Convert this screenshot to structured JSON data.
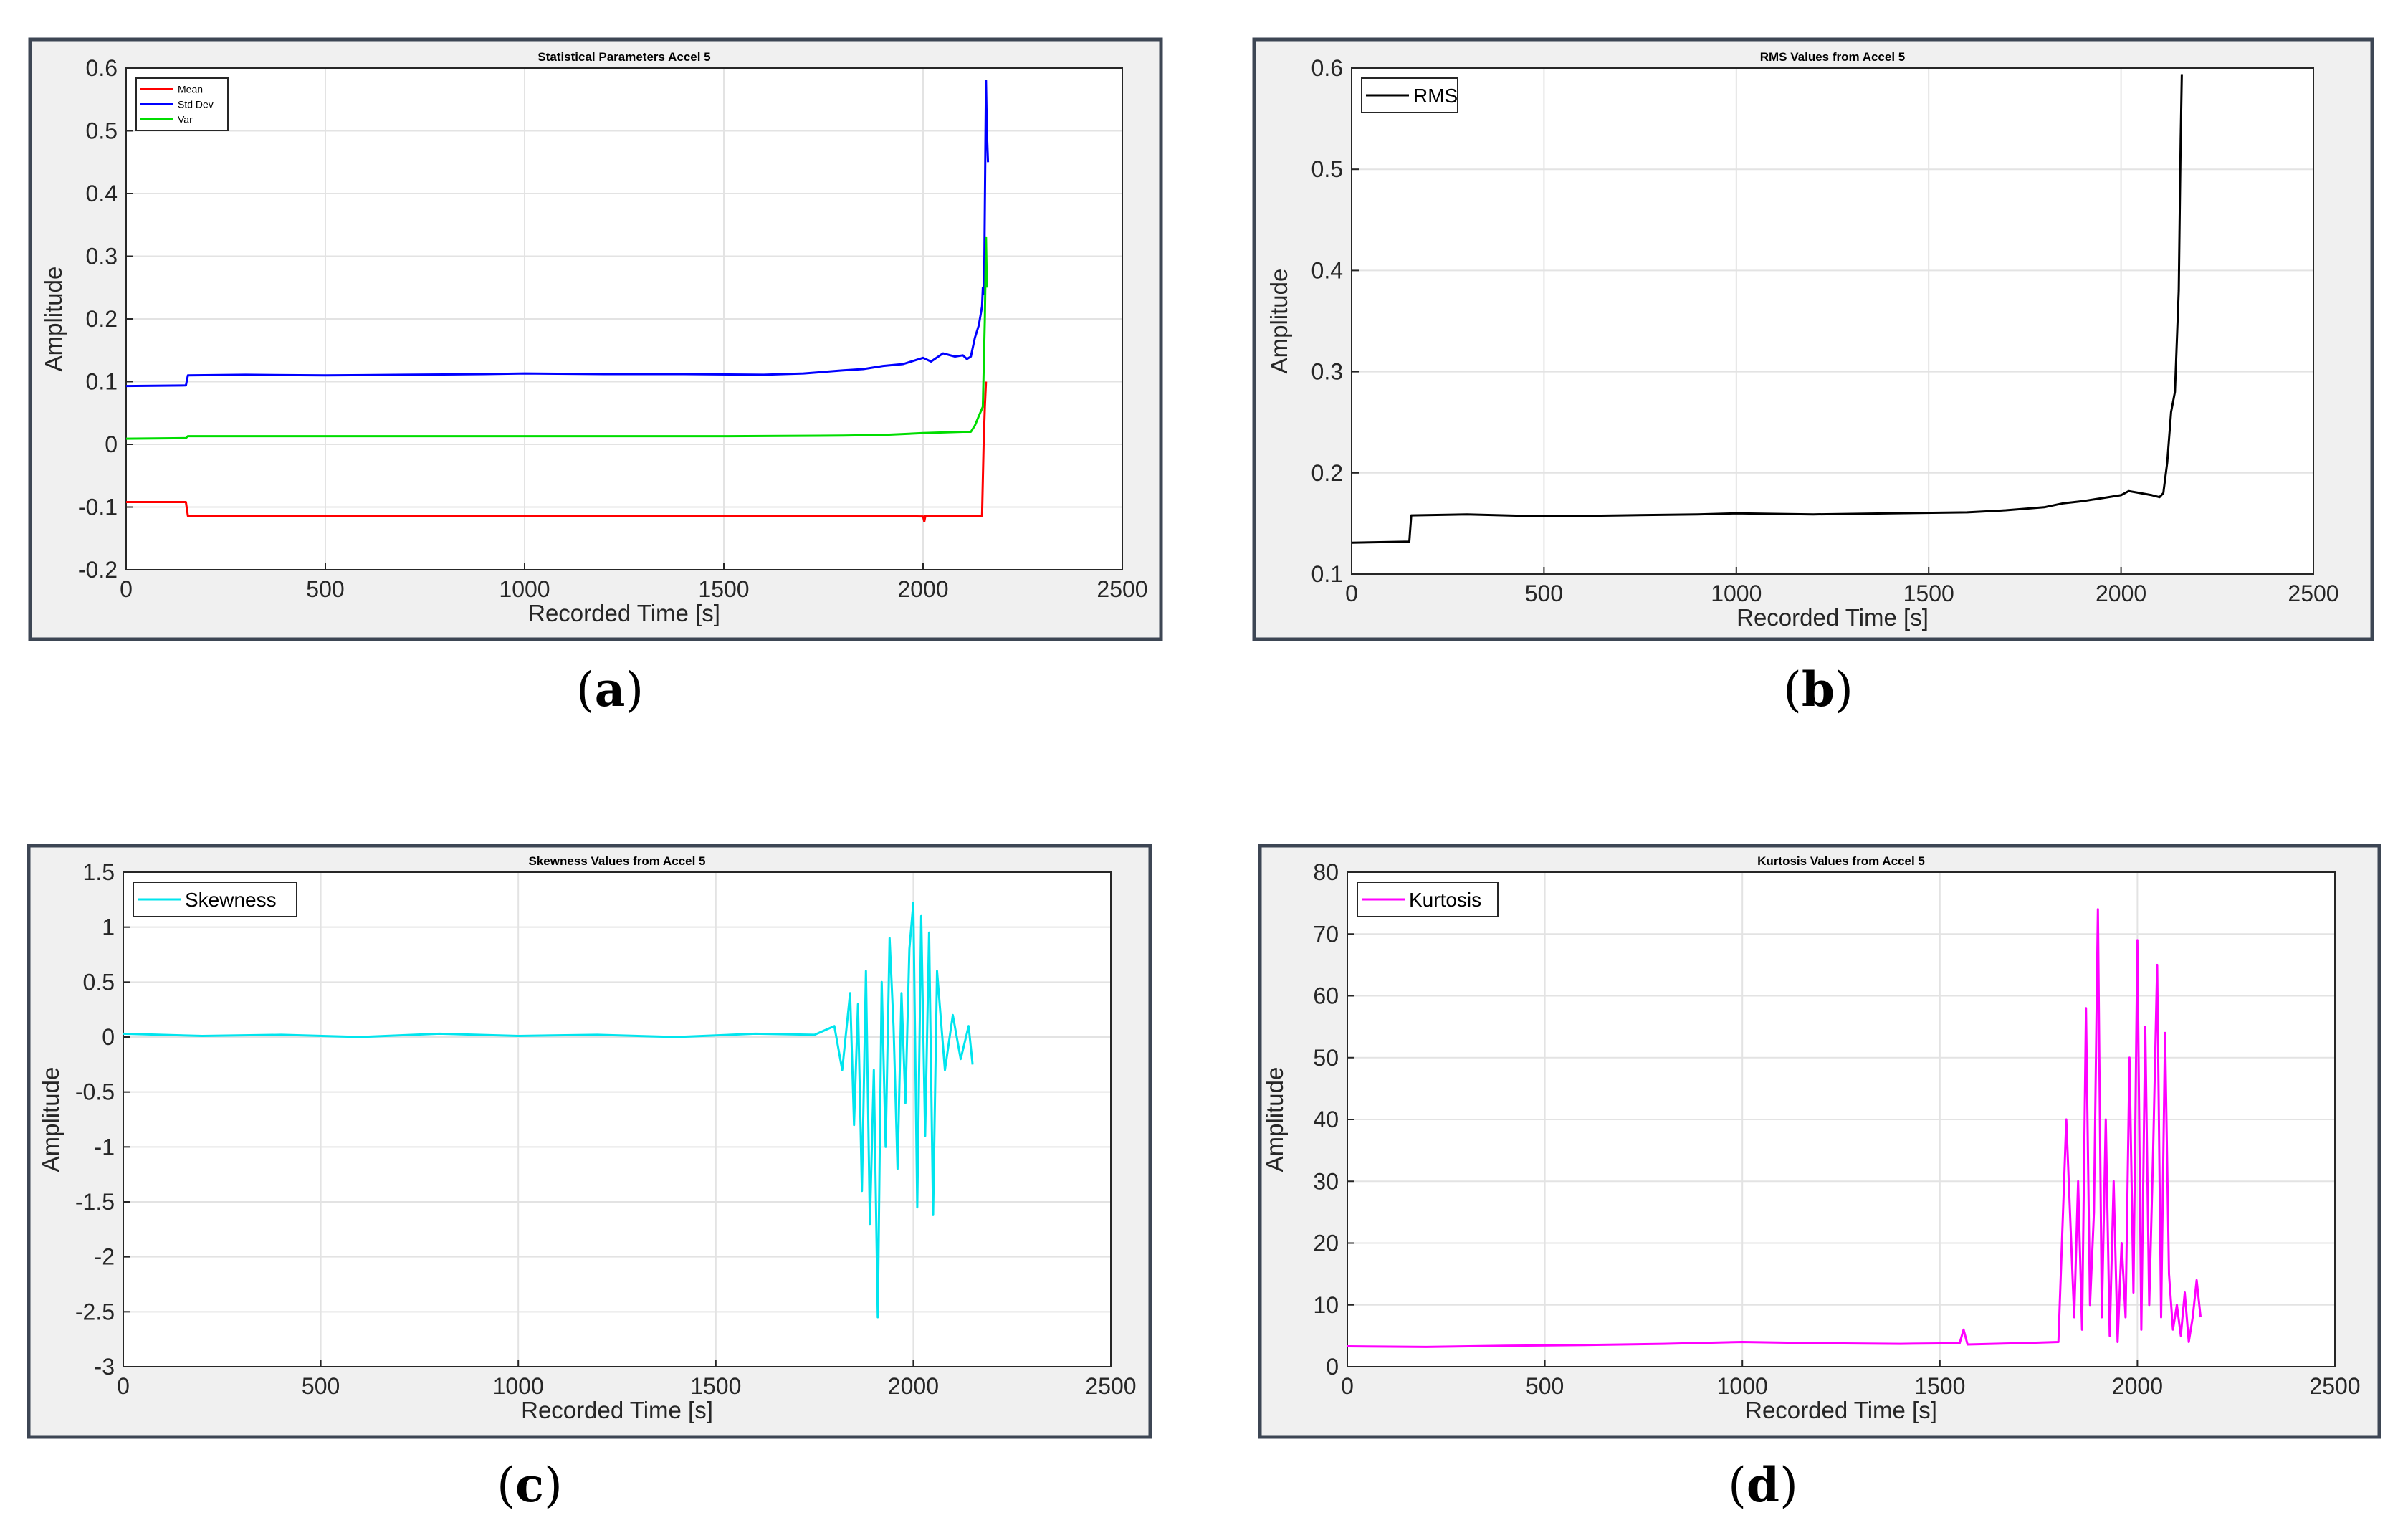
{
  "chart_data": [
    {
      "id": "a",
      "type": "line",
      "title": "Statistical Parameters Accel 5",
      "xlabel": "Recorded Time [s]",
      "ylabel": "Amplitude",
      "xlim": [
        0,
        2500
      ],
      "ylim": [
        -0.2,
        0.6
      ],
      "xticks": [
        "0",
        "500",
        "1000",
        "1500",
        "2000",
        "2500"
      ],
      "yticks": [
        "-0.2",
        "-0.1",
        "0",
        "0.1",
        "0.2",
        "0.3",
        "0.4",
        "0.5",
        "0.6"
      ],
      "grid": true,
      "legend_position": "top-left",
      "caption": {
        "open": "(",
        "letter": "a",
        "close": ")"
      },
      "series": [
        {
          "name": "Mean",
          "color": "#ff0000",
          "x": [
            0,
            150,
            155,
            500,
            1000,
            1500,
            1900,
            2000,
            2003,
            2006,
            2100,
            2130,
            2148,
            2152,
            2155,
            2158
          ],
          "y": [
            -0.092,
            -0.092,
            -0.114,
            -0.114,
            -0.114,
            -0.114,
            -0.114,
            -0.115,
            -0.123,
            -0.114,
            -0.114,
            -0.114,
            -0.114,
            0.0,
            0.06,
            0.1
          ]
        },
        {
          "name": "Std Dev",
          "color": "#0000ff",
          "x": [
            0,
            150,
            155,
            300,
            500,
            700,
            900,
            1000,
            1200,
            1400,
            1600,
            1700,
            1800,
            1850,
            1900,
            1950,
            2000,
            2020,
            2050,
            2080,
            2100,
            2110,
            2120,
            2130,
            2140,
            2148,
            2150,
            2153,
            2155,
            2158,
            2160,
            2163
          ],
          "y": [
            0.093,
            0.094,
            0.11,
            0.111,
            0.11,
            0.111,
            0.112,
            0.113,
            0.112,
            0.112,
            0.111,
            0.113,
            0.118,
            0.12,
            0.125,
            0.128,
            0.138,
            0.132,
            0.145,
            0.14,
            0.142,
            0.136,
            0.14,
            0.17,
            0.19,
            0.22,
            0.25,
            0.24,
            0.38,
            0.58,
            0.5,
            0.45
          ]
        },
        {
          "name": "Var",
          "color": "#00dd00",
          "x": [
            0,
            150,
            155,
            500,
            1000,
            1500,
            1800,
            1900,
            2000,
            2100,
            2120,
            2130,
            2140,
            2150,
            2155,
            2158,
            2160
          ],
          "y": [
            0.009,
            0.01,
            0.013,
            0.013,
            0.013,
            0.013,
            0.014,
            0.015,
            0.018,
            0.02,
            0.02,
            0.03,
            0.045,
            0.06,
            0.2,
            0.33,
            0.25
          ]
        }
      ]
    },
    {
      "id": "b",
      "type": "line",
      "title": "RMS Values from Accel 5",
      "xlabel": "Recorded Time [s]",
      "ylabel": "Amplitude",
      "xlim": [
        0,
        2500
      ],
      "ylim": [
        0.1,
        0.6
      ],
      "xticks": [
        "0",
        "500",
        "1000",
        "1500",
        "2000",
        "2500"
      ],
      "yticks": [
        "0.1",
        "0.2",
        "0.3",
        "0.4",
        "0.5",
        "0.6"
      ],
      "grid": true,
      "legend_position": "top-left",
      "caption": {
        "open": "(",
        "letter": "b",
        "close": ")"
      },
      "series": [
        {
          "name": "RMS",
          "color": "#000000",
          "x": [
            0,
            150,
            155,
            300,
            500,
            700,
            900,
            1000,
            1200,
            1400,
            1600,
            1700,
            1800,
            1850,
            1900,
            1950,
            2000,
            2020,
            2050,
            2080,
            2100,
            2110,
            2120,
            2130,
            2140,
            2150,
            2155,
            2158
          ],
          "y": [
            0.131,
            0.132,
            0.158,
            0.159,
            0.157,
            0.158,
            0.159,
            0.16,
            0.159,
            0.16,
            0.161,
            0.163,
            0.166,
            0.17,
            0.172,
            0.175,
            0.178,
            0.182,
            0.18,
            0.178,
            0.176,
            0.18,
            0.21,
            0.26,
            0.28,
            0.38,
            0.53,
            0.594
          ]
        }
      ]
    },
    {
      "id": "c",
      "type": "line",
      "title": "Skewness Values from Accel 5",
      "xlabel": "Recorded Time [s]",
      "ylabel": "Amplitude",
      "xlim": [
        0,
        2500
      ],
      "ylim": [
        -3,
        1.5
      ],
      "xticks": [
        "0",
        "500",
        "1000",
        "1500",
        "2000",
        "2500"
      ],
      "yticks": [
        "-3",
        "-2.5",
        "-2",
        "-1.5",
        "-1",
        "-0.5",
        "0",
        "0.5",
        "1",
        "1.5"
      ],
      "grid": true,
      "legend_position": "top-left",
      "caption": {
        "open": "(",
        "letter": "c",
        "close": ")"
      },
      "series": [
        {
          "name": "Skewness",
          "color": "#00e5ee",
          "x": [
            0,
            200,
            400,
            600,
            800,
            1000,
            1200,
            1400,
            1600,
            1750,
            1800,
            1820,
            1840,
            1850,
            1860,
            1870,
            1880,
            1890,
            1900,
            1910,
            1920,
            1930,
            1940,
            1950,
            1960,
            1970,
            1980,
            1990,
            2000,
            2010,
            2020,
            2030,
            2040,
            2050,
            2060,
            2080,
            2100,
            2120,
            2140,
            2150
          ],
          "y": [
            0.03,
            0.01,
            0.02,
            0.0,
            0.03,
            0.01,
            0.02,
            0.0,
            0.03,
            0.02,
            0.1,
            -0.3,
            0.4,
            -0.8,
            0.3,
            -1.4,
            0.6,
            -1.7,
            -0.3,
            -2.55,
            0.5,
            -1.0,
            0.9,
            0.1,
            -1.2,
            0.4,
            -0.6,
            0.8,
            1.22,
            -1.55,
            1.1,
            -0.9,
            0.95,
            -1.62,
            0.6,
            -0.3,
            0.2,
            -0.2,
            0.1,
            -0.25
          ]
        }
      ]
    },
    {
      "id": "d",
      "type": "line",
      "title": "Kurtosis Values from Accel 5",
      "xlabel": "Recorded Time [s]",
      "ylabel": "Amplitude",
      "xlim": [
        0,
        2500
      ],
      "ylim": [
        0,
        80
      ],
      "xticks": [
        "0",
        "500",
        "1000",
        "1500",
        "2000",
        "2500"
      ],
      "yticks": [
        "0",
        "10",
        "20",
        "30",
        "40",
        "50",
        "60",
        "70",
        "80"
      ],
      "grid": true,
      "legend_position": "top-left",
      "caption": {
        "open": "(",
        "letter": "d",
        "close": ")"
      },
      "series": [
        {
          "name": "Kurtosis",
          "color": "#ff00ff",
          "x": [
            0,
            200,
            400,
            600,
            800,
            1000,
            1200,
            1400,
            1550,
            1560,
            1570,
            1700,
            1800,
            1820,
            1840,
            1850,
            1860,
            1870,
            1880,
            1890,
            1900,
            1910,
            1920,
            1930,
            1940,
            1950,
            1960,
            1970,
            1980,
            1990,
            2000,
            2010,
            2020,
            2030,
            2040,
            2050,
            2060,
            2070,
            2080,
            2090,
            2100,
            2110,
            2120,
            2130,
            2140,
            2150,
            2160
          ],
          "y": [
            3.3,
            3.2,
            3.4,
            3.5,
            3.7,
            4.0,
            3.8,
            3.7,
            3.8,
            6.0,
            3.6,
            3.8,
            4.0,
            40.0,
            8.0,
            30.0,
            6.0,
            58.0,
            10.0,
            25.0,
            74.0,
            8.0,
            40.0,
            5.0,
            30.0,
            4.0,
            20.0,
            8.0,
            50.0,
            12.0,
            69.0,
            6.0,
            55.0,
            10.0,
            35.0,
            65.0,
            8.0,
            54.0,
            15.0,
            6.0,
            10.0,
            5.0,
            12.0,
            4.0,
            8.0,
            14.0,
            8.0
          ]
        }
      ]
    }
  ]
}
